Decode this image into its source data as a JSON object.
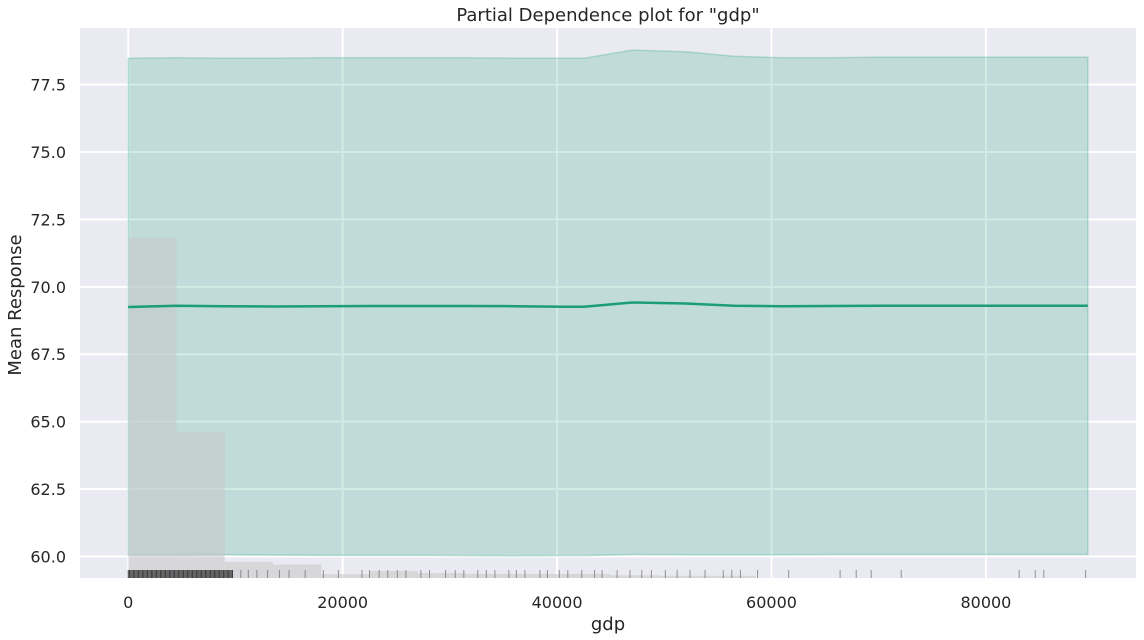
{
  "chart_data": {
    "type": "line",
    "title": "Partial Dependence plot for \"gdp\"",
    "xlabel": "gdp",
    "ylabel": "Mean Response",
    "xlim": [
      -4500,
      94000
    ],
    "ylim": [
      59.2,
      79.6
    ],
    "x_ticks": [
      "0",
      "20000",
      "40000",
      "60000",
      "80000"
    ],
    "y_ticks": [
      "60.0",
      "62.5",
      "65.0",
      "67.5",
      "70.0",
      "72.5",
      "75.0",
      "77.5"
    ],
    "grid": true,
    "colors": {
      "background": "#eaeaf2",
      "line": "#1b9e77",
      "band": "#1b9e77",
      "histogram": "#c7c7c7",
      "rug": "#000000"
    },
    "series": [
      {
        "x": [
          0,
          4500,
          9000,
          13500,
          18000,
          22500,
          27000,
          31500,
          36000,
          40500,
          42500,
          47000,
          52000,
          56500,
          61000,
          65500,
          70000,
          74500,
          79000,
          83500,
          89500
        ],
        "values": [
          69.25,
          69.3,
          69.28,
          69.27,
          69.28,
          69.29,
          69.29,
          69.29,
          69.28,
          69.26,
          69.26,
          69.42,
          69.38,
          69.3,
          69.28,
          69.29,
          69.3,
          69.3,
          69.3,
          69.3,
          69.3
        ]
      }
    ],
    "confidence_band": {
      "x": [
        0,
        4500,
        9000,
        13500,
        18000,
        22500,
        27000,
        31500,
        36000,
        40500,
        42500,
        47000,
        52000,
        56500,
        61000,
        65500,
        70000,
        74500,
        79000,
        83500,
        89500
      ],
      "upper": [
        78.48,
        78.5,
        78.48,
        78.48,
        78.5,
        78.5,
        78.5,
        78.5,
        78.48,
        78.48,
        78.48,
        78.78,
        78.72,
        78.55,
        78.5,
        78.5,
        78.52,
        78.52,
        78.52,
        78.52,
        78.52
      ],
      "lower": [
        60.05,
        60.05,
        60.06,
        60.05,
        60.04,
        60.04,
        60.04,
        60.03,
        60.02,
        60.03,
        60.03,
        60.07,
        60.06,
        60.06,
        60.06,
        60.07,
        60.07,
        60.07,
        60.07,
        60.07,
        60.07
      ]
    },
    "histogram": {
      "bin_edges": [
        0,
        4500,
        9000,
        13500,
        18000,
        22500,
        27000,
        31500,
        36000,
        40500,
        45000,
        49500,
        54000,
        58500
      ],
      "tops": [
        71.82,
        64.62,
        59.8,
        59.7,
        59.34,
        59.46,
        59.38,
        59.35,
        59.35,
        59.35,
        59.3,
        59.28,
        59.28
      ]
    },
    "rug": {
      "dense_range": [
        0,
        9800
      ],
      "sparse_x": [
        10500,
        11200,
        12000,
        13000,
        14100,
        15000,
        16500,
        18200,
        19600,
        21800,
        22500,
        23400,
        24200,
        25100,
        25900,
        27300,
        28100,
        29600,
        30500,
        31300,
        32600,
        33400,
        34200,
        35500,
        36200,
        37000,
        38400,
        39100,
        40200,
        41000,
        42300,
        43500,
        44200,
        45600,
        46800,
        47900,
        48800,
        50100,
        51200,
        52400,
        53800,
        55500,
        56300,
        57100,
        58700,
        61600,
        66400,
        67900,
        69300,
        72100,
        83100,
        84600,
        85400,
        89300
      ]
    }
  }
}
